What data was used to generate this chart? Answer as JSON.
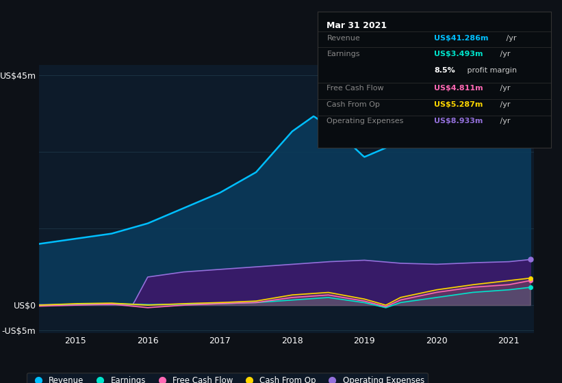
{
  "bg_color": "#0d1117",
  "plot_bg_color": "#0d1b2a",
  "grid_color": "#1e3a4a",
  "title_text": "Mar 31 2021",
  "ylabel_top": "US$45m",
  "ylabel_zero": "US$0",
  "ylabel_bottom": "-US$5m",
  "x_ticks": [
    2015,
    2016,
    2017,
    2018,
    2019,
    2020,
    2021
  ],
  "revenue_color": "#00bfff",
  "earnings_color": "#00e5cc",
  "fcf_color": "#ff69b4",
  "cashfromop_color": "#ffd700",
  "opex_color": "#9370db",
  "revenue_fill": "#0a3a5a",
  "opex_fill": "#3a1a6a",
  "info_title": "Mar 31 2021",
  "info_rows": [
    {
      "label": "Revenue",
      "value": "US$41.286m",
      "unit": " /yr",
      "color": "#00bfff",
      "divider": true
    },
    {
      "label": "Earnings",
      "value": "US$3.493m",
      "unit": " /yr",
      "color": "#00e5cc",
      "divider": false
    },
    {
      "label": "",
      "value": "8.5%",
      "unit": " profit margin",
      "color": "#ffffff",
      "divider": true
    },
    {
      "label": "Free Cash Flow",
      "value": "US$4.811m",
      "unit": " /yr",
      "color": "#ff69b4",
      "divider": true
    },
    {
      "label": "Cash From Op",
      "value": "US$5.287m",
      "unit": " /yr",
      "color": "#ffd700",
      "divider": true
    },
    {
      "label": "Operating Expenses",
      "value": "US$8.933m",
      "unit": " /yr",
      "color": "#9370db",
      "divider": false
    }
  ],
  "legend_items": [
    {
      "label": "Revenue",
      "color": "#00bfff"
    },
    {
      "label": "Earnings",
      "color": "#00e5cc"
    },
    {
      "label": "Free Cash Flow",
      "color": "#ff69b4"
    },
    {
      "label": "Cash From Op",
      "color": "#ffd700"
    },
    {
      "label": "Operating Expenses",
      "color": "#9370db"
    }
  ]
}
